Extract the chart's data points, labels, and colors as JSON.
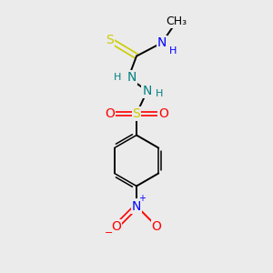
{
  "background_color": "#ebebeb",
  "bond_color": "#000000",
  "sulfur_color": "#cccc00",
  "oxygen_color": "#ff0000",
  "nitrogen_color": "#0000ff",
  "nitrogen2_color": "#008080",
  "carbon_color": "#000000",
  "figsize": [
    3.0,
    3.0
  ],
  "dpi": 100,
  "xlim": [
    0,
    10
  ],
  "ylim": [
    0,
    10
  ]
}
